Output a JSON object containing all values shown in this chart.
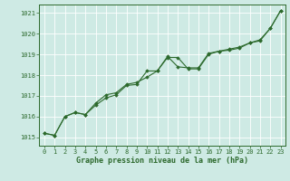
{
  "xlabel": "Graphe pression niveau de la mer (hPa)",
  "x": [
    0,
    1,
    2,
    3,
    4,
    5,
    6,
    7,
    8,
    9,
    10,
    11,
    12,
    13,
    14,
    15,
    16,
    17,
    18,
    19,
    20,
    21,
    22,
    23
  ],
  "line1": [
    1015.2,
    1015.1,
    1016.0,
    1016.2,
    1016.1,
    1016.55,
    1016.9,
    1017.05,
    1017.5,
    1017.55,
    1018.2,
    1018.2,
    1018.85,
    1018.85,
    1018.3,
    1018.3,
    1019.0,
    1019.15,
    1019.2,
    1019.3,
    1019.55,
    1019.65,
    1020.25,
    1021.1
  ],
  "line2": [
    1015.2,
    1015.1,
    1016.0,
    1016.2,
    1016.1,
    1016.65,
    1017.05,
    1017.15,
    1017.55,
    1017.65,
    1017.9,
    1018.2,
    1018.9,
    1018.4,
    1018.35,
    1018.35,
    1019.05,
    1019.15,
    1019.25,
    1019.35,
    1019.55,
    1019.7,
    1020.25,
    1021.1
  ],
  "ylim": [
    1014.6,
    1021.4
  ],
  "yticks": [
    1015,
    1016,
    1017,
    1018,
    1019,
    1020,
    1021
  ],
  "xticks": [
    0,
    1,
    2,
    3,
    4,
    5,
    6,
    7,
    8,
    9,
    10,
    11,
    12,
    13,
    14,
    15,
    16,
    17,
    18,
    19,
    20,
    21,
    22,
    23
  ],
  "line_color": "#2d6a2d",
  "bg_color": "#ceeae4",
  "grid_color": "#ffffff",
  "marker": "D",
  "marker_size": 1.8,
  "line_width": 0.8,
  "tick_fontsize": 5.0,
  "xlabel_fontsize": 6.0
}
